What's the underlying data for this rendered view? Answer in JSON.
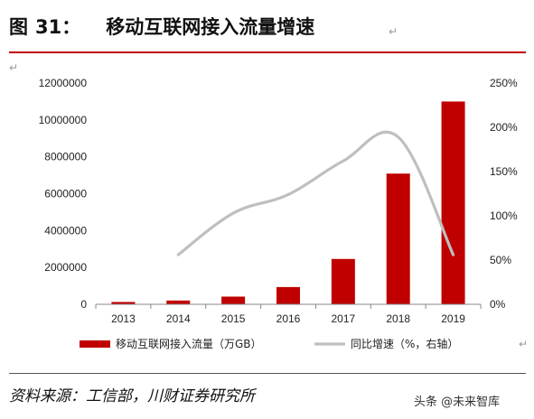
{
  "figure": {
    "label": "图",
    "number": "31：",
    "title": "移动互联网接入流量增速",
    "source": "资料来源：工信部，川财证券研究所",
    "watermark": "头条 @未来智库"
  },
  "chart_data": {
    "type": "bar+line",
    "categories": [
      "2013",
      "2014",
      "2015",
      "2016",
      "2017",
      "2018",
      "2019"
    ],
    "series": [
      {
        "name": "移动互联网接入流量（万GB）",
        "type": "bar",
        "axis": "left",
        "color": "#c00000",
        "values": [
          127000,
          206000,
          418000,
          936000,
          2460000,
          7090000,
          11000000
        ]
      },
      {
        "name": "同比增速（%，右轴）",
        "type": "line",
        "axis": "right",
        "color": "#bfbfbf",
        "values": [
          null,
          56,
          103,
          124,
          162,
          189,
          56
        ]
      }
    ],
    "y_left": {
      "min": 0,
      "max": 12000000,
      "ticks": [
        "0",
        "2000000",
        "4000000",
        "6000000",
        "8000000",
        "10000000",
        "12000000"
      ]
    },
    "y_right": {
      "min": 0,
      "max": 250,
      "ticks": [
        "0%",
        "50%",
        "100%",
        "150%",
        "200%",
        "250%"
      ]
    },
    "legend_position": "bottom",
    "grid": false
  }
}
